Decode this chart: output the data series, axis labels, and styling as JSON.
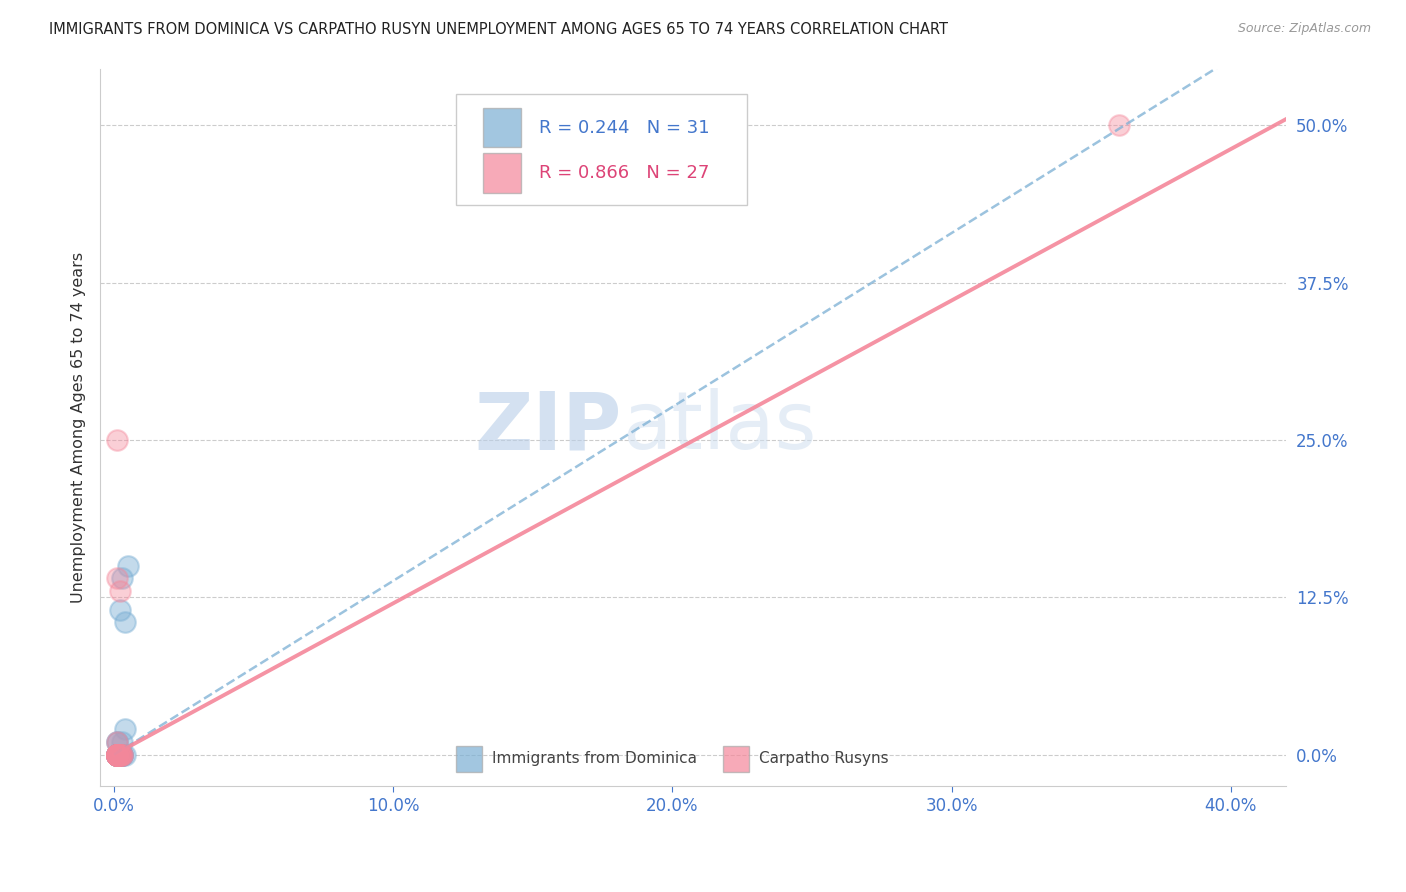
{
  "title": "IMMIGRANTS FROM DOMINICA VS CARPATHO RUSYN UNEMPLOYMENT AMONG AGES 65 TO 74 YEARS CORRELATION CHART",
  "source": "Source: ZipAtlas.com",
  "ylabel": "Unemployment Among Ages 65 to 74 years",
  "legend_label1": "Immigrants from Dominica",
  "legend_label2": "Carpatho Rusyns",
  "r1": "0.244",
  "n1": "31",
  "r2": "0.866",
  "n2": "27",
  "color_blue": "#7BAFD4",
  "color_pink": "#F4879A",
  "color_blue_text": "#4477CC",
  "color_pink_text": "#DD4477",
  "watermark_zip": "ZIP",
  "watermark_atlas": "atlas",
  "scatter_blue_x": [
    0.001,
    0.002,
    0.001,
    0.003,
    0.002,
    0.001,
    0.005,
    0.003,
    0.004,
    0.001,
    0.001,
    0.002,
    0.003,
    0.004,
    0.001,
    0.002,
    0.001,
    0.003,
    0.001,
    0.001,
    0.002,
    0.001,
    0.003,
    0.001,
    0.002,
    0.001,
    0.004,
    0.001,
    0.003,
    0.002,
    0.001
  ],
  "scatter_blue_y": [
    0.0,
    0.0,
    0.0,
    0.01,
    0.0,
    0.01,
    0.15,
    0.14,
    0.0,
    0.0,
    0.0,
    0.0,
    0.0,
    0.02,
    0.01,
    0.0,
    0.0,
    0.0,
    0.0,
    0.0,
    0.0,
    0.0,
    0.0,
    0.0,
    0.115,
    0.0,
    0.105,
    0.0,
    0.0,
    0.0,
    0.0
  ],
  "scatter_pink_x": [
    0.001,
    0.001,
    0.001,
    0.002,
    0.001,
    0.001,
    0.003,
    0.001,
    0.002,
    0.001,
    0.001,
    0.002,
    0.001,
    0.003,
    0.001,
    0.002,
    0.001,
    0.001,
    0.001,
    0.001,
    0.001,
    0.002,
    0.001,
    0.001,
    0.001,
    0.36,
    0.001
  ],
  "scatter_pink_y": [
    0.0,
    0.0,
    0.0,
    0.0,
    0.0,
    0.0,
    0.0,
    0.01,
    0.0,
    0.0,
    0.0,
    0.0,
    0.0,
    0.0,
    0.14,
    0.13,
    0.0,
    0.25,
    0.0,
    0.0,
    0.0,
    0.0,
    0.0,
    0.0,
    0.0,
    0.5,
    0.0
  ],
  "xlim": [
    -0.005,
    0.42
  ],
  "ylim": [
    -0.025,
    0.545
  ],
  "xticks": [
    0.0,
    0.1,
    0.2,
    0.3,
    0.4
  ],
  "yticks": [
    0.0,
    0.125,
    0.25,
    0.375,
    0.5
  ],
  "blue_line_x": [
    0.0,
    0.42
  ],
  "blue_line_y": [
    0.0,
    0.58
  ],
  "pink_line_x": [
    0.0,
    0.42
  ],
  "pink_line_y": [
    0.0,
    0.505
  ]
}
